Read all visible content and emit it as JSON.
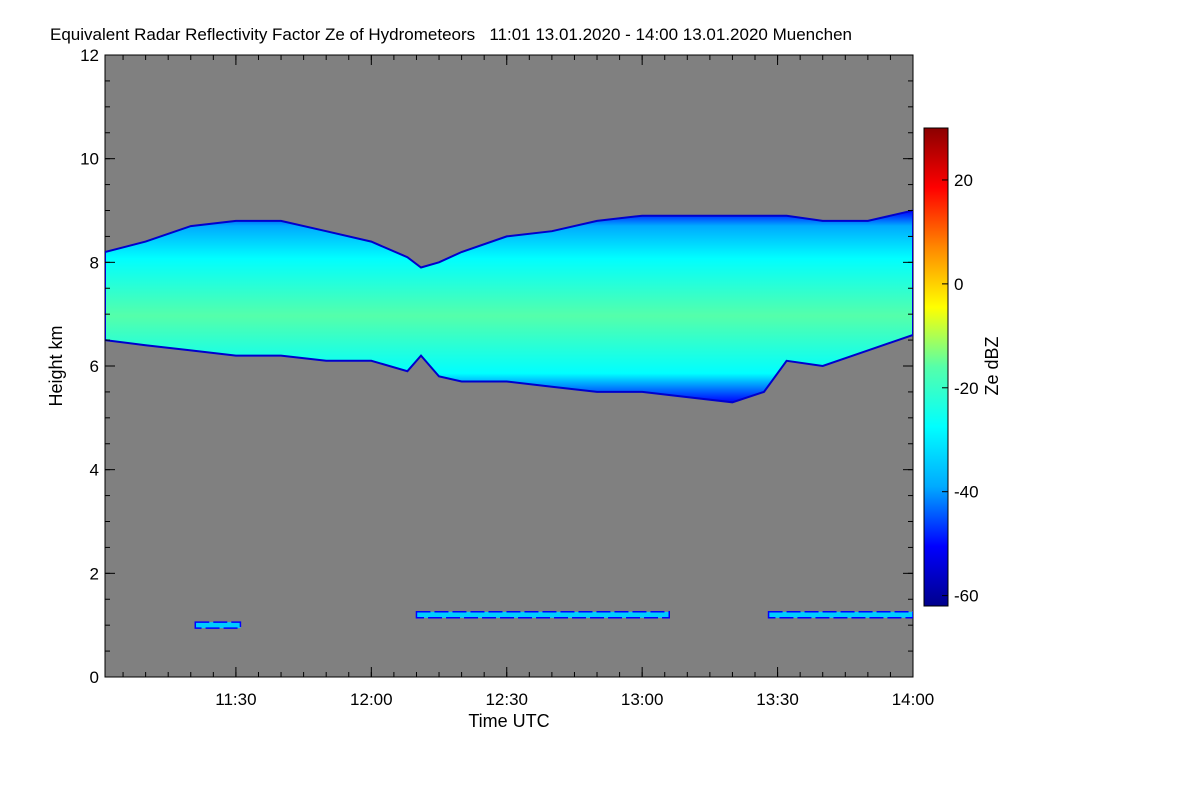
{
  "chart_data": {
    "type": "heatmap",
    "title": "Equivalent Radar Reflectivity Factor Ze of Hydrometeors   11:01 13.01.2020 - 14:00 13.01.2020 Muenchen",
    "xlabel": "Time UTC",
    "ylabel": "Height km",
    "x_range_minutes": [
      661,
      840
    ],
    "ylim": [
      0,
      12
    ],
    "x_ticks": [
      {
        "minute": 690,
        "label": "11:30"
      },
      {
        "minute": 720,
        "label": "12:00"
      },
      {
        "minute": 750,
        "label": "12:30"
      },
      {
        "minute": 780,
        "label": "13:00"
      },
      {
        "minute": 810,
        "label": "13:30"
      },
      {
        "minute": 840,
        "label": "14:00"
      }
    ],
    "y_ticks": [
      0,
      2,
      4,
      6,
      8,
      10,
      12
    ],
    "y_tick_labels": [
      "0",
      "2",
      "4",
      "6",
      "8",
      "10",
      "12"
    ],
    "colorbar": {
      "label": "Ze dBZ",
      "range": [
        -62,
        30
      ],
      "ticks": [
        -60,
        -40,
        -20,
        0,
        20
      ],
      "tick_labels": [
        "-60",
        "-40",
        "-20",
        "0",
        "20"
      ],
      "colormap": [
        "#00008b",
        "#0000ff",
        "#00aaff",
        "#00ffff",
        "#55ffaa",
        "#ffff00",
        "#ff8800",
        "#ff0000",
        "#8b0000"
      ],
      "background_color": "#808080"
    },
    "layers": [
      {
        "name": "upper-ice-cloud",
        "x_minutes": [
          661,
          670,
          680,
          690,
          700,
          710,
          720,
          728,
          731,
          735,
          740,
          750,
          760,
          770,
          780,
          790,
          800,
          807,
          812,
          820,
          830,
          840
        ],
        "top_km": [
          8.2,
          8.4,
          8.7,
          8.8,
          8.8,
          8.6,
          8.4,
          8.1,
          7.9,
          8.0,
          8.2,
          8.5,
          8.6,
          8.8,
          8.9,
          8.9,
          8.9,
          8.9,
          8.9,
          8.8,
          8.8,
          9.0
        ],
        "base_km": [
          6.5,
          6.4,
          6.3,
          6.2,
          6.2,
          6.1,
          6.1,
          5.9,
          6.2,
          5.8,
          5.7,
          5.7,
          5.6,
          5.5,
          5.5,
          5.4,
          5.3,
          5.5,
          6.1,
          6.0,
          6.3,
          6.6
        ],
        "peak_dbz": -12
      },
      {
        "name": "low-layer-left",
        "x_minutes": [
          681,
          691
        ],
        "height_km": 1.0,
        "peak_dbz": -30
      },
      {
        "name": "low-layer-middle",
        "x_minutes": [
          730,
          786
        ],
        "height_km": 1.2,
        "peak_dbz": -25
      },
      {
        "name": "low-layer-right",
        "x_minutes": [
          808,
          840
        ],
        "height_km": 1.2,
        "peak_dbz": -28
      }
    ]
  }
}
